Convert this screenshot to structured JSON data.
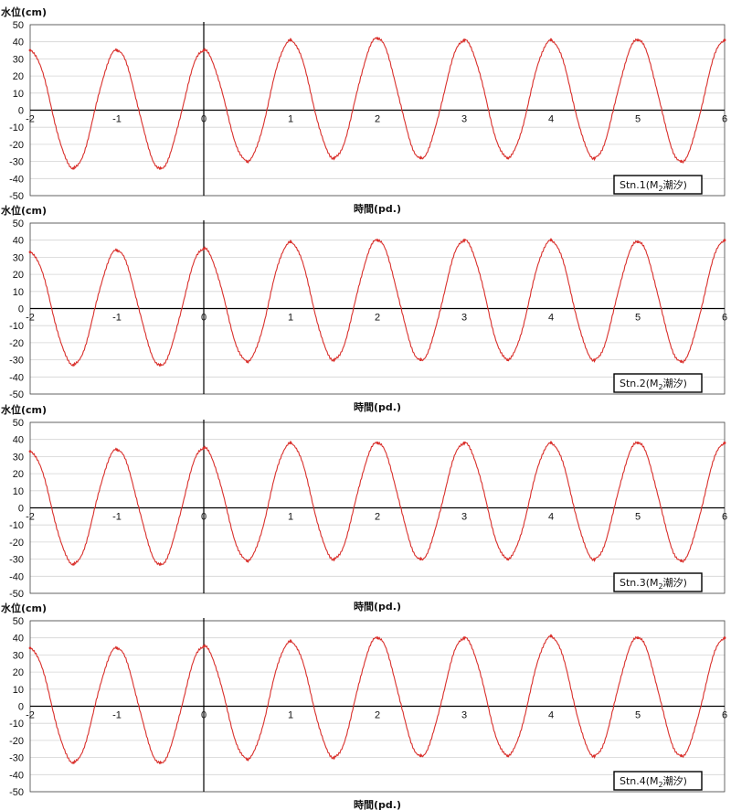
{
  "chart_data": [
    {
      "type": "line",
      "ylabel": "水位(cm)",
      "xlabel": "時間(pd.)",
      "station_label": "Stn.1(M",
      "label_subscript": "2",
      "label_suffix": "潮汐)",
      "xlim": [
        -2,
        6
      ],
      "ylim": [
        -50,
        50
      ],
      "x_ticks": [
        -2,
        -1,
        0,
        1,
        2,
        3,
        4,
        5,
        6
      ],
      "y_ticks": [
        50,
        40,
        30,
        20,
        10,
        0,
        -10,
        -20,
        -30,
        -40,
        -50
      ],
      "grid": true,
      "series": [
        {
          "color": "#d9302c",
          "x": [
            -2,
            -1.5,
            -1,
            -0.5,
            0,
            0.5,
            1,
            1.5,
            2,
            2.5,
            3,
            3.5,
            4,
            4.5,
            5,
            5.5,
            6
          ],
          "values": [
            35,
            -34,
            35,
            -34,
            35,
            -30,
            41,
            -28,
            42,
            -28,
            41,
            -28,
            41,
            -28,
            41,
            -30,
            41
          ]
        }
      ]
    },
    {
      "type": "line",
      "ylabel": "水位(cm)",
      "xlabel": "時間(pd.)",
      "station_label": "Stn.2(M",
      "label_subscript": "2",
      "label_suffix": "潮汐)",
      "xlim": [
        -2,
        6
      ],
      "ylim": [
        -50,
        50
      ],
      "x_ticks": [
        -2,
        -1,
        0,
        1,
        2,
        3,
        4,
        5,
        6
      ],
      "y_ticks": [
        50,
        40,
        30,
        20,
        10,
        0,
        -10,
        -20,
        -30,
        -40,
        -50
      ],
      "grid": true,
      "series": [
        {
          "color": "#d9302c",
          "x": [
            -2,
            -1.5,
            -1,
            -0.5,
            0,
            0.5,
            1,
            1.5,
            2,
            2.5,
            3,
            3.5,
            4,
            4.5,
            5,
            5.5,
            6
          ],
          "values": [
            33,
            -33,
            34,
            -33,
            35,
            -31,
            39,
            -30,
            40,
            -30,
            40,
            -30,
            40,
            -30,
            39,
            -31,
            40
          ]
        }
      ]
    },
    {
      "type": "line",
      "ylabel": "水位(cm)",
      "xlabel": "時間(pd.)",
      "station_label": "Stn.3(M",
      "label_subscript": "2",
      "label_suffix": "潮汐)",
      "xlim": [
        -2,
        6
      ],
      "ylim": [
        -50,
        50
      ],
      "x_ticks": [
        -2,
        -1,
        0,
        1,
        2,
        3,
        4,
        5,
        6
      ],
      "y_ticks": [
        50,
        40,
        30,
        20,
        10,
        0,
        -10,
        -20,
        -30,
        -40,
        -50
      ],
      "grid": true,
      "series": [
        {
          "color": "#d9302c",
          "x": [
            -2,
            -1.5,
            -1,
            -0.5,
            0,
            0.5,
            1,
            1.5,
            2,
            2.5,
            3,
            3.5,
            4,
            4.5,
            5,
            5.5,
            6
          ],
          "values": [
            33,
            -33,
            34,
            -33,
            35,
            -31,
            38,
            -30,
            38,
            -30,
            38,
            -30,
            38,
            -30,
            38,
            -31,
            38
          ]
        }
      ]
    },
    {
      "type": "line",
      "ylabel": "水位(cm)",
      "xlabel": "時間(pd.)",
      "station_label": "Stn.4(M",
      "label_subscript": "2",
      "label_suffix": "潮汐)",
      "xlim": [
        -2,
        6
      ],
      "ylim": [
        -50,
        50
      ],
      "x_ticks": [
        -2,
        -1,
        0,
        1,
        2,
        3,
        4,
        5,
        6
      ],
      "y_ticks": [
        50,
        40,
        30,
        20,
        10,
        0,
        -10,
        -20,
        -30,
        -40,
        -50
      ],
      "grid": true,
      "series": [
        {
          "color": "#d9302c",
          "x": [
            -2,
            -1.5,
            -1,
            -0.5,
            0,
            0.5,
            1,
            1.5,
            2,
            2.5,
            3,
            3.5,
            4,
            4.5,
            5,
            5.5,
            6
          ],
          "values": [
            34,
            -33,
            34,
            -33,
            35,
            -31,
            38,
            -30,
            40,
            -29,
            40,
            -29,
            41,
            -29,
            40,
            -29,
            40
          ]
        }
      ]
    }
  ]
}
